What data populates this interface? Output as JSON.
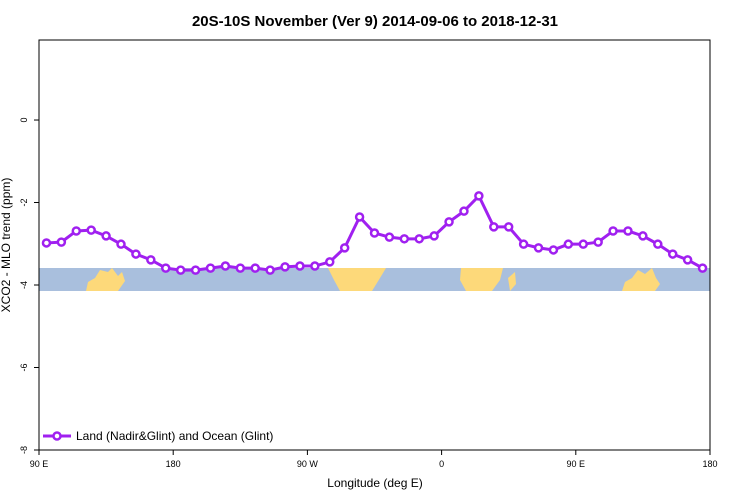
{
  "chart_data": {
    "type": "line",
    "title": "20S-10S November (Ver 9)   2014-09-06 to 2018-12-31",
    "x_label": "Longitude (deg E)",
    "y_label": "XCO2 - MLO trend (ppm)",
    "x": [
      95,
      105,
      115,
      125,
      135,
      145,
      155,
      165,
      175,
      185,
      195,
      205,
      215,
      225,
      235,
      245,
      255,
      265,
      275,
      285,
      295,
      305,
      315,
      325,
      335,
      345,
      355,
      365,
      375,
      385,
      395,
      405,
      415,
      425,
      435,
      445,
      455,
      465,
      475,
      485,
      495,
      505,
      515,
      525,
      535
    ],
    "series": [
      {
        "name": "Land (Nadir&Glint) and Ocean (Glint)",
        "color": "#a020f0",
        "values": [
          -2.98,
          -2.96,
          -2.69,
          -2.67,
          -2.81,
          -3.01,
          -3.25,
          -3.39,
          -3.59,
          -3.64,
          -3.64,
          -3.59,
          -3.54,
          -3.59,
          -3.59,
          -3.64,
          -3.56,
          -3.54,
          -3.54,
          -3.44,
          -3.1,
          -2.35,
          -2.74,
          -2.84,
          -2.88,
          -2.88,
          -2.81,
          -2.47,
          -2.21,
          -1.84,
          -2.59,
          -2.59,
          -3.01,
          -3.1,
          -3.15,
          -3.01,
          -3.01,
          -2.96,
          -2.69,
          -2.69,
          -2.81,
          -3.01,
          -3.25,
          -3.39,
          -3.59
        ]
      }
    ],
    "xlim": [
      90,
      540
    ],
    "xticks": [
      {
        "value": 90,
        "label": "90 E"
      },
      {
        "value": 180,
        "label": "180"
      },
      {
        "value": 270,
        "label": "90 W"
      },
      {
        "value": 360,
        "label": "0"
      },
      {
        "value": 450,
        "label": "90 E"
      },
      {
        "value": 540,
        "label": "180"
      }
    ],
    "ylim": [
      -8,
      1.94
    ],
    "yticks": [
      0,
      -2,
      -4,
      -6,
      -8
    ],
    "legend": "bottom-left"
  }
}
